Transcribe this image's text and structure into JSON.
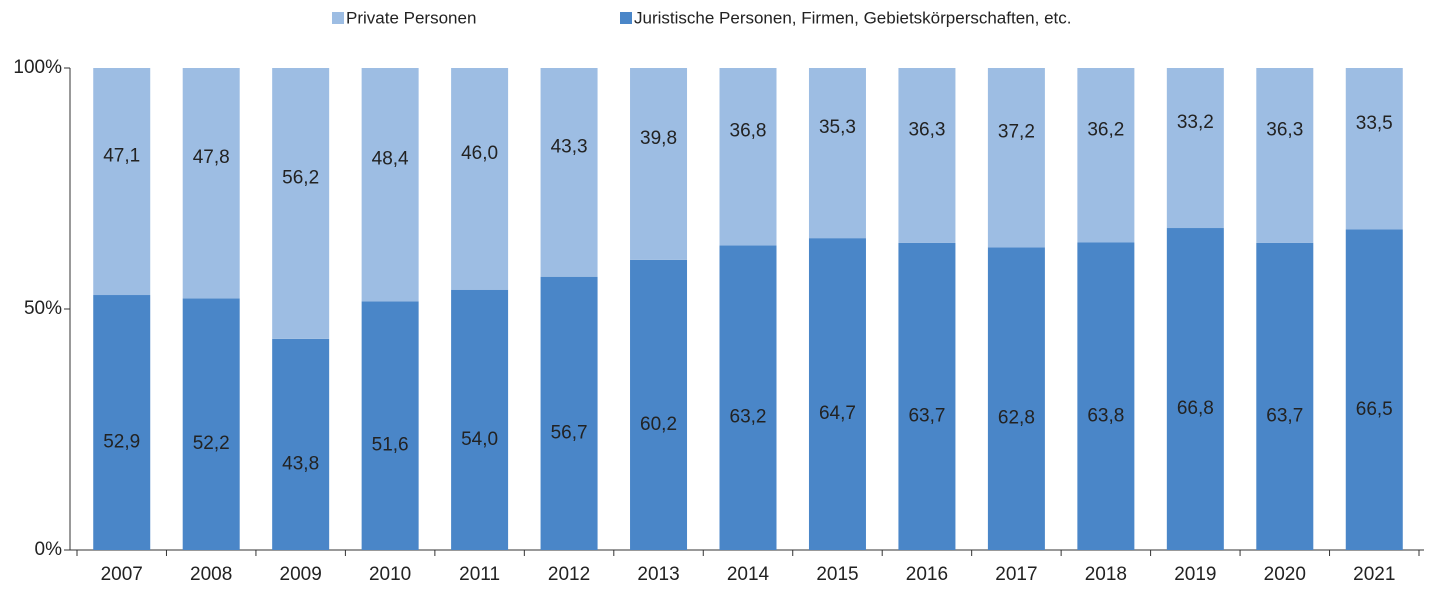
{
  "chart_data": {
    "type": "stacked_bar_percent",
    "categories": [
      "2007",
      "2008",
      "2009",
      "2010",
      "2011",
      "2012",
      "2013",
      "2014",
      "2015",
      "2016",
      "2017",
      "2018",
      "2019",
      "2020",
      "2021"
    ],
    "series": [
      {
        "name": "Private Personen",
        "color": "#9dbde3",
        "values": [
          47.1,
          47.8,
          56.2,
          48.4,
          46.0,
          43.3,
          39.8,
          36.8,
          35.3,
          36.3,
          37.2,
          36.2,
          33.2,
          36.3,
          33.5
        ],
        "value_labels": [
          "47,1",
          "47,8",
          "56,2",
          "48,4",
          "46,0",
          "43,3",
          "39,8",
          "36,8",
          "35,3",
          "36,3",
          "37,2",
          "36,2",
          "33,2",
          "36,3",
          "33,5"
        ]
      },
      {
        "name": "Juristische Personen, Firmen, Gebietskörperschaften, etc.",
        "color": "#4a86c8",
        "values": [
          52.9,
          52.2,
          43.8,
          51.6,
          54.0,
          56.7,
          60.2,
          63.2,
          64.7,
          63.7,
          62.8,
          63.8,
          66.8,
          63.7,
          66.5
        ],
        "value_labels": [
          "52,9",
          "52,2",
          "43,8",
          "51,6",
          "54,0",
          "56,7",
          "60,2",
          "63,2",
          "64,7",
          "63,7",
          "62,8",
          "63,8",
          "66,8",
          "63,7",
          "66,5"
        ]
      }
    ],
    "ylim": [
      0,
      100
    ],
    "yticks": [
      {
        "value": 0,
        "label": "0%"
      },
      {
        "value": 50,
        "label": "50%"
      },
      {
        "value": 100,
        "label": "100%"
      }
    ]
  }
}
